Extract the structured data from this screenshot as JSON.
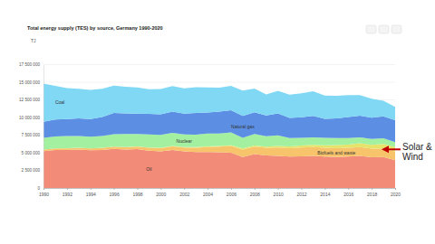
{
  "chart_data": {
    "type": "area",
    "stacked": true,
    "title": "Total energy supply (TES) by source, Germany 1990-2020",
    "y_label": "TJ",
    "grid": true,
    "x": [
      1990,
      1991,
      1992,
      1993,
      1994,
      1995,
      1996,
      1997,
      1998,
      1999,
      2000,
      2001,
      2002,
      2003,
      2004,
      2005,
      2006,
      2007,
      2008,
      2009,
      2010,
      2011,
      2012,
      2013,
      2014,
      2015,
      2016,
      2017,
      2018,
      2019,
      2020
    ],
    "xlim": [
      1990,
      2020
    ],
    "xticks": [
      1990,
      1992,
      1994,
      1996,
      1998,
      2000,
      2002,
      2004,
      2006,
      2008,
      2010,
      2012,
      2014,
      2016,
      2018,
      2020
    ],
    "ylim": [
      0,
      17500000
    ],
    "yticks": [
      0,
      {
        "value": 2500000,
        "label": "2 500 000"
      },
      {
        "value": 5000000,
        "label": "5 000 000"
      },
      {
        "value": 7500000,
        "label": "7 500 000"
      },
      {
        "value": 10000000,
        "label": "10 000 000"
      },
      {
        "value": 12500000,
        "label": "12 500 000"
      },
      {
        "value": 15000000,
        "label": "15 000 000"
      },
      {
        "value": 17500000,
        "label": "17 500 000"
      }
    ],
    "series": [
      {
        "name": "Oil",
        "color": "#f28b78",
        "values": [
          5240000,
          5400000,
          5400000,
          5450000,
          5350000,
          5400000,
          5550000,
          5450000,
          5500000,
          5300000,
          5200000,
          5400000,
          5200000,
          5100000,
          5100000,
          5050000,
          5000000,
          4400000,
          4800000,
          4600000,
          4550000,
          4450000,
          4500000,
          4550000,
          4450000,
          4400000,
          4450000,
          4550000,
          4350000,
          4400000,
          3950000
        ]
      },
      {
        "name": "Biofuels and waste",
        "color": "#f7c46c",
        "values": [
          200000,
          200000,
          220000,
          230000,
          250000,
          270000,
          300000,
          330000,
          360000,
          400000,
          450000,
          500000,
          550000,
          620000,
          700000,
          800000,
          950000,
          1050000,
          1080000,
          1100000,
          1200000,
          1200000,
          1250000,
          1250000,
          1250000,
          1250000,
          1250000,
          1250000,
          1220000,
          1220000,
          1200000
        ]
      },
      {
        "name": "Solar & Wind",
        "color": "#e6e36a",
        "values": [
          0,
          0,
          10000,
          10000,
          10000,
          20000,
          20000,
          30000,
          30000,
          40000,
          40000,
          50000,
          60000,
          70000,
          100000,
          100000,
          120000,
          150000,
          150000,
          160000,
          200000,
          250000,
          290000,
          310000,
          350000,
          430000,
          450000,
          540000,
          560000,
          620000,
          650000
        ]
      },
      {
        "name": "Nuclear",
        "color": "#a3f0a0",
        "values": [
          1660000,
          1700000,
          1730000,
          1670000,
          1650000,
          1680000,
          1760000,
          1860000,
          1760000,
          1860000,
          1850000,
          1870000,
          1790000,
          1790000,
          1820000,
          1780000,
          1820000,
          1530000,
          1620000,
          1470000,
          1530000,
          1180000,
          1080000,
          1060000,
          1060000,
          1000000,
          920000,
          830000,
          830000,
          820000,
          700000
        ]
      },
      {
        "name": "Natural gas",
        "color": "#5c8fe3",
        "values": [
          2300000,
          2400000,
          2400000,
          2500000,
          2500000,
          2700000,
          3000000,
          2900000,
          2900000,
          2900000,
          2900000,
          3000000,
          2950000,
          3050000,
          3000000,
          3100000,
          3150000,
          3100000,
          3100000,
          2950000,
          3100000,
          2850000,
          2900000,
          3050000,
          2700000,
          2800000,
          3000000,
          3100000,
          3000000,
          3100000,
          3100000
        ]
      },
      {
        "name": "Coal",
        "color": "#80d8f5",
        "values": [
          5400000,
          4800000,
          4400000,
          4200000,
          4150000,
          4000000,
          3900000,
          3800000,
          3700000,
          3500000,
          3600000,
          3650000,
          3600000,
          3650000,
          3550000,
          3400000,
          3450000,
          3600000,
          3350000,
          3000000,
          3200000,
          3300000,
          3400000,
          3500000,
          3300000,
          3200000,
          3100000,
          2900000,
          2700000,
          2200000,
          1900000
        ]
      }
    ],
    "annotations": [
      {
        "text": "Solar & Wind"
      }
    ]
  }
}
